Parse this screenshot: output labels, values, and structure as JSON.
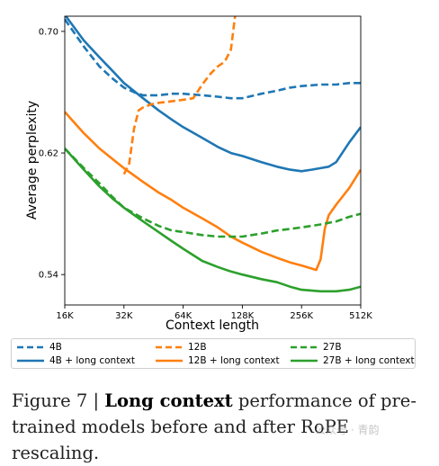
{
  "chart_data": {
    "type": "line",
    "xlabel": "Context length",
    "ylabel": "Average perplexity",
    "x_scale": "log2",
    "x_ticks": [
      "16K",
      "32K",
      "64K",
      "128K",
      "256K",
      "512K"
    ],
    "y_ticks": [
      0.54,
      0.62,
      0.7
    ],
    "ylim": [
      0.52,
      0.71
    ],
    "grid": false,
    "series": [
      {
        "name": "4B",
        "style": "dashed",
        "color": "#1f77b4",
        "points": [
          [
            16,
            0.708
          ],
          [
            20,
            0.69
          ],
          [
            24,
            0.677
          ],
          [
            28,
            0.669
          ],
          [
            32,
            0.663
          ],
          [
            36,
            0.66
          ],
          [
            40,
            0.658
          ],
          [
            48,
            0.658
          ],
          [
            56,
            0.659
          ],
          [
            64,
            0.659
          ],
          [
            80,
            0.658
          ],
          [
            96,
            0.657
          ],
          [
            112,
            0.656
          ],
          [
            128,
            0.656
          ],
          [
            160,
            0.659
          ],
          [
            192,
            0.661
          ],
          [
            224,
            0.663
          ],
          [
            256,
            0.664
          ],
          [
            320,
            0.665
          ],
          [
            384,
            0.665
          ],
          [
            448,
            0.666
          ],
          [
            512,
            0.666
          ]
        ]
      },
      {
        "name": "4B + long context",
        "style": "solid",
        "color": "#1f77b4",
        "points": [
          [
            16,
            0.711
          ],
          [
            20,
            0.694
          ],
          [
            24,
            0.683
          ],
          [
            28,
            0.674
          ],
          [
            32,
            0.666
          ],
          [
            40,
            0.656
          ],
          [
            48,
            0.648
          ],
          [
            56,
            0.642
          ],
          [
            64,
            0.637
          ],
          [
            80,
            0.63
          ],
          [
            96,
            0.624
          ],
          [
            112,
            0.62
          ],
          [
            128,
            0.618
          ],
          [
            160,
            0.614
          ],
          [
            192,
            0.611
          ],
          [
            224,
            0.609
          ],
          [
            256,
            0.608
          ],
          [
            288,
            0.609
          ],
          [
            320,
            0.61
          ],
          [
            352,
            0.611
          ],
          [
            384,
            0.614
          ],
          [
            448,
            0.627
          ],
          [
            512,
            0.637
          ]
        ]
      },
      {
        "name": "12B",
        "style": "dashed",
        "color": "#ff7f0e",
        "points": [
          [
            32,
            0.606
          ],
          [
            34,
            0.613
          ],
          [
            36,
            0.636
          ],
          [
            38,
            0.648
          ],
          [
            40,
            0.65
          ],
          [
            44,
            0.652
          ],
          [
            48,
            0.653
          ],
          [
            56,
            0.654
          ],
          [
            64,
            0.655
          ],
          [
            72,
            0.656
          ],
          [
            80,
            0.665
          ],
          [
            88,
            0.672
          ],
          [
            96,
            0.677
          ],
          [
            104,
            0.68
          ],
          [
            112,
            0.688
          ],
          [
            118,
            0.712
          ]
        ]
      },
      {
        "name": "12B + long context",
        "style": "solid",
        "color": "#ff7f0e",
        "points": [
          [
            16,
            0.647
          ],
          [
            20,
            0.633
          ],
          [
            24,
            0.623
          ],
          [
            28,
            0.616
          ],
          [
            32,
            0.61
          ],
          [
            40,
            0.601
          ],
          [
            48,
            0.594
          ],
          [
            56,
            0.589
          ],
          [
            64,
            0.584
          ],
          [
            80,
            0.577
          ],
          [
            96,
            0.571
          ],
          [
            112,
            0.565
          ],
          [
            128,
            0.561
          ],
          [
            160,
            0.555
          ],
          [
            192,
            0.551
          ],
          [
            224,
            0.548
          ],
          [
            256,
            0.546
          ],
          [
            288,
            0.544
          ],
          [
            304,
            0.543
          ],
          [
            320,
            0.55
          ],
          [
            336,
            0.57
          ],
          [
            352,
            0.579
          ],
          [
            384,
            0.586
          ],
          [
            448,
            0.597
          ],
          [
            512,
            0.609
          ]
        ]
      },
      {
        "name": "27B",
        "style": "dashed",
        "color": "#2ca02c",
        "points": [
          [
            16,
            0.623
          ],
          [
            20,
            0.61
          ],
          [
            24,
            0.6
          ],
          [
            28,
            0.591
          ],
          [
            32,
            0.584
          ],
          [
            40,
            0.577
          ],
          [
            48,
            0.572
          ],
          [
            56,
            0.569
          ],
          [
            64,
            0.568
          ],
          [
            80,
            0.566
          ],
          [
            96,
            0.565
          ],
          [
            112,
            0.565
          ],
          [
            128,
            0.565
          ],
          [
            160,
            0.567
          ],
          [
            192,
            0.569
          ],
          [
            224,
            0.57
          ],
          [
            256,
            0.571
          ],
          [
            320,
            0.573
          ],
          [
            384,
            0.575
          ],
          [
            448,
            0.578
          ],
          [
            512,
            0.58
          ]
        ]
      },
      {
        "name": "27B + long context",
        "style": "solid",
        "color": "#2ca02c",
        "points": [
          [
            16,
            0.623
          ],
          [
            20,
            0.609
          ],
          [
            24,
            0.598
          ],
          [
            28,
            0.59
          ],
          [
            32,
            0.584
          ],
          [
            40,
            0.575
          ],
          [
            48,
            0.568
          ],
          [
            56,
            0.562
          ],
          [
            64,
            0.557
          ],
          [
            80,
            0.549
          ],
          [
            96,
            0.545
          ],
          [
            112,
            0.542
          ],
          [
            128,
            0.54
          ],
          [
            160,
            0.537
          ],
          [
            192,
            0.535
          ],
          [
            224,
            0.532
          ],
          [
            256,
            0.53
          ],
          [
            320,
            0.529
          ],
          [
            384,
            0.529
          ],
          [
            448,
            0.53
          ],
          [
            512,
            0.532
          ]
        ]
      }
    ]
  },
  "caption": {
    "prefix": "Figure 7 | ",
    "bold": "Long context",
    "rest": " performance of pre-trained models before and after RoPE rescaling."
  },
  "watermark": "公众号 · 青韵"
}
